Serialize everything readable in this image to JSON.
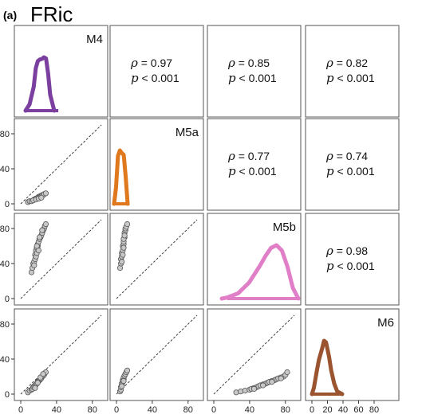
{
  "figure": {
    "panel_letter": "(a)",
    "title": "FRic"
  },
  "chart_data": {
    "type": "scatter",
    "layout": "pairs-matrix",
    "models": [
      "M4",
      "M5a",
      "M5b",
      "M6"
    ],
    "colors": {
      "M4": "#7b3fa0",
      "M5a": "#e0781e",
      "M5b": "#e07fc8",
      "M6": "#9a5530"
    },
    "axis_range": [
      0,
      90
    ],
    "ticks": [
      0,
      40,
      80
    ],
    "m6_ticks": [
      0,
      20,
      40,
      60,
      80
    ],
    "correlations": [
      {
        "row": 0,
        "col": 1,
        "rho": "= 0.97",
        "p": "< 0.001"
      },
      {
        "row": 0,
        "col": 2,
        "rho": "= 0.85",
        "p": "< 0.001"
      },
      {
        "row": 0,
        "col": 3,
        "rho": "= 0.82",
        "p": "< 0.001"
      },
      {
        "row": 1,
        "col": 2,
        "rho": "= 0.77",
        "p": "< 0.001"
      },
      {
        "row": 1,
        "col": 3,
        "rho": "= 0.74",
        "p": "< 0.001"
      },
      {
        "row": 2,
        "col": 3,
        "rho": "= 0.98",
        "p": "< 0.001"
      }
    ],
    "stat_labels": {
      "rho_symbol": "ρ",
      "p_symbol": "p"
    },
    "densities": {
      "M4": {
        "x": [
          14,
          16,
          18,
          19,
          20,
          21,
          22,
          23,
          24,
          25,
          26,
          28
        ],
        "y": [
          0,
          0.12,
          0.45,
          0.8,
          0.93,
          0.96,
          0.97,
          1.0,
          0.98,
          0.7,
          0.3,
          0
        ]
      },
      "M5a": {
        "x": [
          4,
          5,
          6,
          7,
          8,
          9,
          10,
          11
        ],
        "y": [
          0,
          0.3,
          0.9,
          1.0,
          0.95,
          0.92,
          0.5,
          0
        ]
      },
      "M5b": {
        "x": [
          15,
          20,
          30,
          40,
          50,
          55,
          60,
          65,
          70,
          75,
          80,
          85
        ],
        "y": [
          0,
          0.02,
          0.1,
          0.3,
          0.62,
          0.8,
          0.95,
          1.0,
          0.9,
          0.6,
          0.2,
          0
        ]
      },
      "M6": {
        "x": [
          3,
          5,
          8,
          10,
          13,
          15,
          17,
          20,
          22,
          25,
          28,
          33
        ],
        "y": [
          0,
          0.12,
          0.45,
          0.65,
          0.85,
          1.0,
          0.97,
          0.7,
          0.45,
          0.2,
          0.05,
          0
        ]
      }
    },
    "rugs": {
      "M4": [
        14,
        30
      ],
      "M5a": [
        3,
        12
      ],
      "M5b": [
        20,
        85
      ],
      "M6": [
        3,
        33
      ]
    },
    "scatter": [
      {
        "row": 1,
        "col": 0,
        "x": [
          8,
          10,
          12,
          14,
          15,
          16,
          17,
          18,
          19,
          20,
          21,
          22,
          23,
          24,
          25,
          26,
          28,
          14,
          17,
          20,
          23
        ],
        "y": [
          2,
          3,
          3,
          4,
          5,
          5,
          6,
          6,
          7,
          8,
          8,
          9,
          9,
          10,
          10,
          11,
          12,
          4,
          5,
          6,
          7
        ]
      },
      {
        "row": 2,
        "col": 0,
        "x": [
          12,
          13,
          14,
          15,
          16,
          16,
          17,
          17,
          18,
          18,
          19,
          19,
          20,
          20,
          21,
          22,
          23,
          24,
          25,
          26,
          27,
          28,
          15,
          18,
          21,
          24
        ],
        "y": [
          30,
          35,
          40,
          42,
          45,
          50,
          48,
          55,
          52,
          58,
          60,
          62,
          55,
          65,
          68,
          70,
          72,
          75,
          78,
          80,
          83,
          85,
          38,
          60,
          70,
          78
        ]
      },
      {
        "row": 2,
        "col": 1,
        "x": [
          4,
          5,
          5,
          6,
          6,
          7,
          7,
          7,
          8,
          8,
          8,
          9,
          9,
          10,
          10,
          11,
          12,
          6,
          8,
          9
        ],
        "y": [
          35,
          40,
          45,
          48,
          52,
          55,
          60,
          50,
          62,
          65,
          58,
          70,
          75,
          78,
          80,
          82,
          85,
          42,
          68,
          72
        ]
      },
      {
        "row": 3,
        "col": 0,
        "x": [
          8,
          10,
          12,
          13,
          14,
          15,
          16,
          17,
          18,
          19,
          20,
          21,
          22,
          23,
          24,
          25,
          26,
          27,
          28,
          16,
          19,
          22,
          25
        ],
        "y": [
          2,
          4,
          5,
          6,
          8,
          9,
          10,
          11,
          12,
          14,
          15,
          16,
          17,
          18,
          20,
          21,
          22,
          24,
          25,
          7,
          13,
          19,
          23
        ]
      },
      {
        "row": 3,
        "col": 1,
        "x": [
          4,
          5,
          5,
          6,
          6,
          7,
          7,
          8,
          8,
          9,
          10,
          11,
          12,
          6,
          8
        ],
        "y": [
          3,
          5,
          8,
          10,
          12,
          14,
          16,
          17,
          19,
          21,
          23,
          25,
          27,
          9,
          15
        ]
      },
      {
        "row": 3,
        "col": 2,
        "x": [
          25,
          30,
          35,
          40,
          42,
          45,
          48,
          50,
          52,
          55,
          58,
          60,
          62,
          65,
          68,
          70,
          72,
          75,
          78,
          80,
          82,
          45,
          55,
          65,
          75
        ],
        "y": [
          2,
          3,
          4,
          5,
          6,
          7,
          8,
          9,
          10,
          11,
          12,
          13,
          14,
          15,
          16,
          17,
          18,
          19,
          20,
          22,
          25,
          6,
          10,
          14,
          18
        ]
      }
    ]
  }
}
